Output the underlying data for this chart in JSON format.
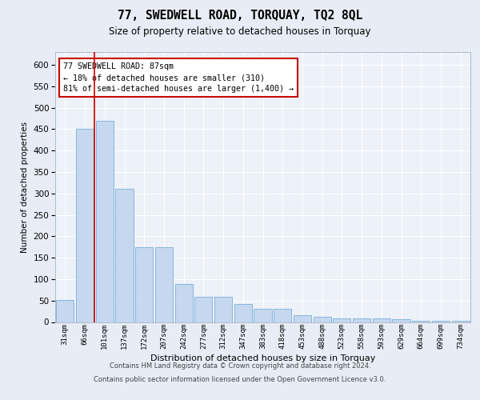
{
  "title1": "77, SWEDWELL ROAD, TORQUAY, TQ2 8QL",
  "title2": "Size of property relative to detached houses in Torquay",
  "xlabel": "Distribution of detached houses by size in Torquay",
  "ylabel": "Number of detached properties",
  "categories": [
    "31sqm",
    "66sqm",
    "101sqm",
    "137sqm",
    "172sqm",
    "207sqm",
    "242sqm",
    "277sqm",
    "312sqm",
    "347sqm",
    "383sqm",
    "418sqm",
    "453sqm",
    "488sqm",
    "523sqm",
    "558sqm",
    "593sqm",
    "629sqm",
    "664sqm",
    "699sqm",
    "734sqm"
  ],
  "values": [
    52,
    450,
    470,
    310,
    175,
    175,
    88,
    58,
    58,
    42,
    30,
    30,
    15,
    12,
    8,
    8,
    8,
    6,
    3,
    3,
    3
  ],
  "bar_color": "#c5d8f0",
  "bar_edge_color": "#7aaed6",
  "vline_x": 1.5,
  "vline_color": "#cc0000",
  "annotation_text": "77 SWEDWELL ROAD: 87sqm\n← 18% of detached houses are smaller (310)\n81% of semi-detached houses are larger (1,400) →",
  "annotation_box_color": "white",
  "annotation_box_edge_color": "#cc0000",
  "ylim": [
    0,
    630
  ],
  "yticks": [
    0,
    50,
    100,
    150,
    200,
    250,
    300,
    350,
    400,
    450,
    500,
    550,
    600
  ],
  "footer1": "Contains HM Land Registry data © Crown copyright and database right 2024.",
  "footer2": "Contains public sector information licensed under the Open Government Licence v3.0.",
  "bg_color": "#e8edf5",
  "plot_bg_color": "#edf1f8"
}
